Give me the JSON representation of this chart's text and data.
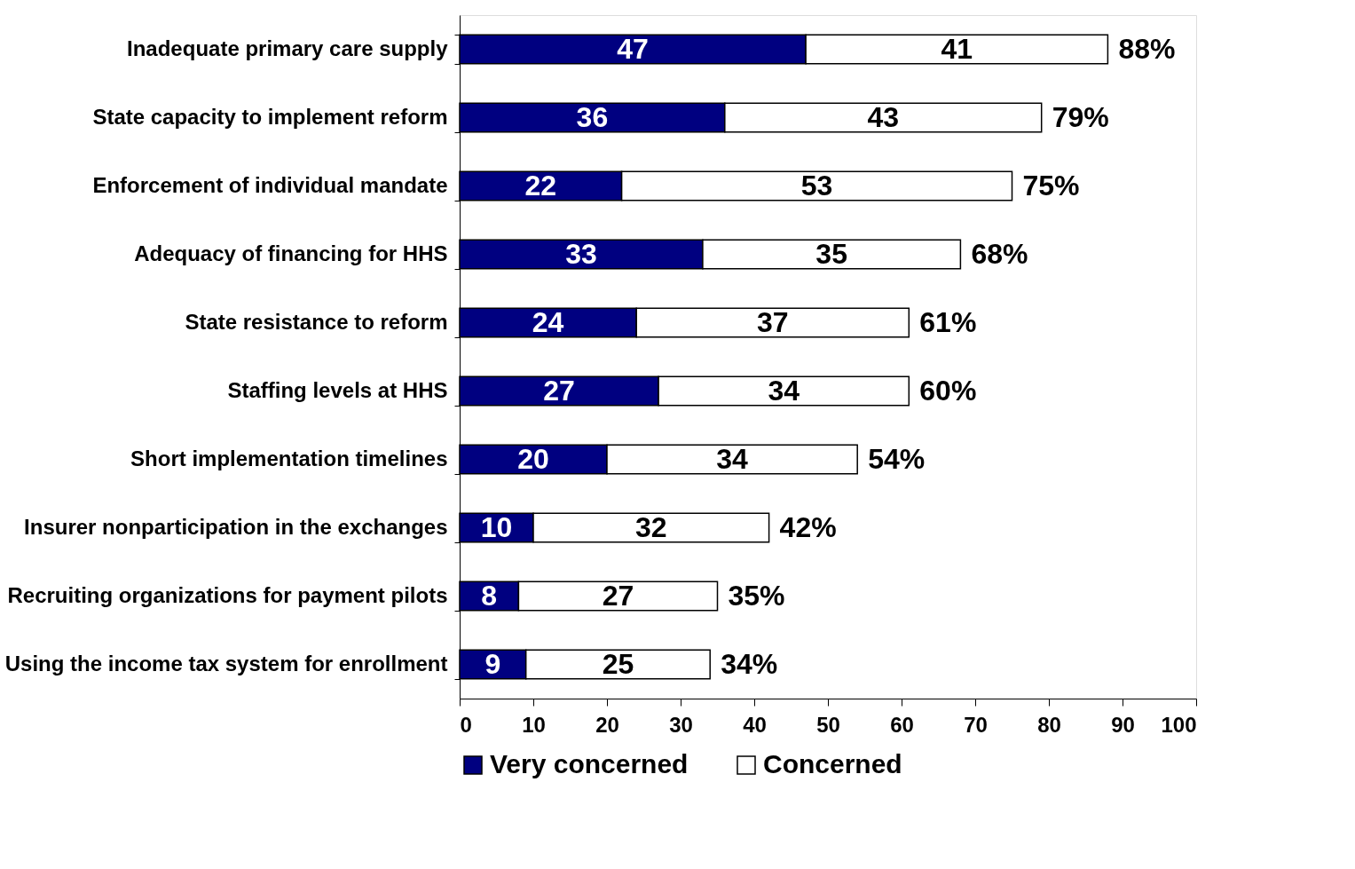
{
  "chart_data": {
    "type": "bar",
    "orientation": "horizontal",
    "stacked": true,
    "data_labels": true,
    "legend": "bottom",
    "grid": false,
    "categories": [
      "Inadequate primary care supply",
      "State capacity to implement reform",
      "Enforcement of individual mandate",
      "Adequacy of financing for HHS",
      "State resistance to reform",
      "Staffing levels at HHS",
      "Short implementation timelines",
      "Insurer nonparticipation in the exchanges",
      "Recruiting organizations for payment pilots",
      "Using the income tax system for enrollment"
    ],
    "series": [
      {
        "name": "Very concerned",
        "color": "#000080",
        "values": [
          47,
          36,
          22,
          33,
          24,
          27,
          20,
          10,
          8,
          9
        ]
      },
      {
        "name": "Concerned",
        "color": "#ffffff",
        "values": [
          41,
          43,
          53,
          35,
          37,
          34,
          34,
          32,
          27,
          25
        ]
      }
    ],
    "totals": [
      "88%",
      "79%",
      "75%",
      "68%",
      "61%",
      "60%",
      "54%",
      "42%",
      "35%",
      "34%"
    ],
    "xlim": [
      0,
      100
    ],
    "xticks": [
      0,
      10,
      20,
      30,
      40,
      50,
      60,
      70,
      80,
      90,
      100
    ]
  }
}
